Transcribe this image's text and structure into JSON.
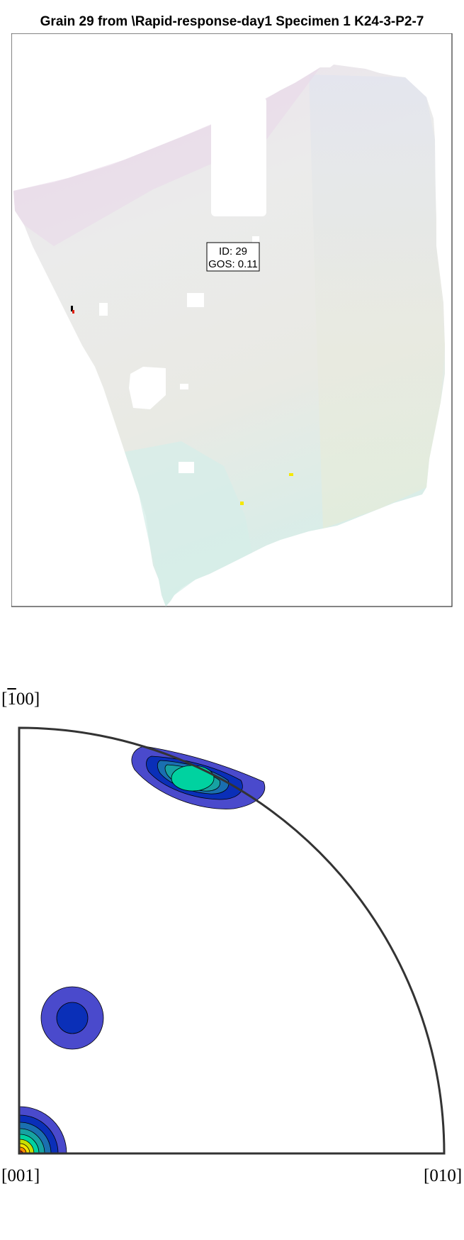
{
  "title": "Grain 29 from \\Rapid-response-day1 Specimen 1 K24-3-P2-7",
  "grain_label": {
    "id_line": "ID: 29",
    "gos_line": "GOS: 0.11"
  },
  "pole_figure": {
    "label_top_prefix": "[",
    "label_top_bar_digit": "1",
    "label_top_suffix": "00]",
    "label_bottom_left": "[001]",
    "label_bottom_right": "[010]"
  },
  "colors": {
    "grain_pink": "#ecdcec",
    "grain_grey": "#ebebeb",
    "grain_lavender": "#e2e4f0",
    "grain_green": "#e9ecde",
    "grain_cyan": "#d7ede9",
    "contour_level_1": "#4a4acc",
    "contour_level_2": "#0a2fb8",
    "contour_level_3": "#1a6fb0",
    "contour_level_4": "#17a2a2",
    "contour_level_5": "#00d2a0",
    "contour_yellow": "#f7e100",
    "contour_orange": "#ff8c00",
    "contour_red": "#d02010"
  }
}
